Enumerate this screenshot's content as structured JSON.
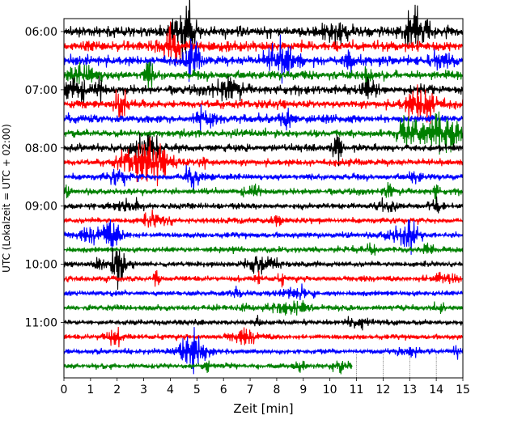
{
  "chart_data": {
    "type": "line",
    "title": "",
    "xlabel": "Zeit  [min]",
    "ylabel": "UTC (Lokalzeit = UTC + 02:00)",
    "xlim": [
      0,
      15
    ],
    "x_ticks": [
      0,
      1,
      2,
      3,
      4,
      5,
      6,
      7,
      8,
      9,
      10,
      11,
      12,
      13,
      14,
      15
    ],
    "x_tick_labels": [
      "0",
      "1",
      "2",
      "3",
      "4",
      "5",
      "6",
      "7",
      "8",
      "9",
      "10",
      "11",
      "12",
      "13",
      "14",
      "15"
    ],
    "y_tick_labels": [
      "06:00",
      "07:00",
      "08:00",
      "09:00",
      "10:00",
      "11:00"
    ],
    "trace_colors": [
      "#000000",
      "#ff0000",
      "#0000ff",
      "#008000"
    ],
    "traces_per_hour": 4,
    "trace_count": 24,
    "last_trace_end_min": 10.85,
    "grid_dotted_x_after_last_trace": [
      11,
      12,
      13,
      14
    ]
  }
}
